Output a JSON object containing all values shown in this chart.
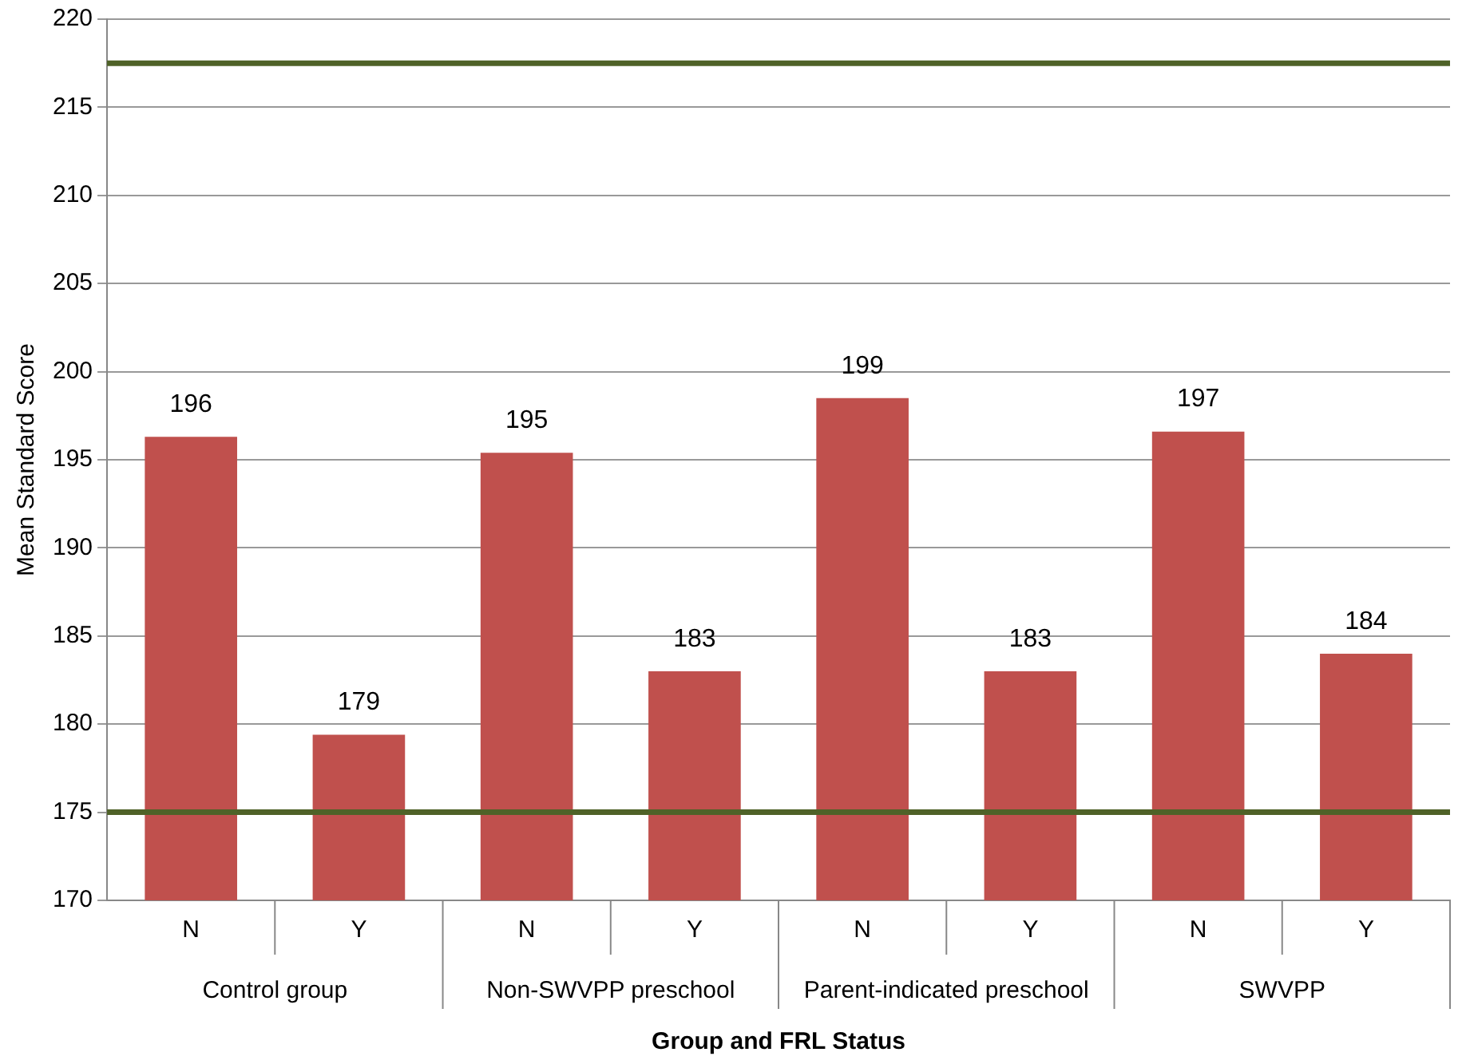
{
  "chart_data": {
    "type": "bar",
    "xlabel": "Group and FRL Status",
    "ylabel": "Mean Standard Score",
    "categories": [
      "N",
      "Y",
      "N",
      "Y",
      "N",
      "Y",
      "N",
      "Y"
    ],
    "values": [
      196.3,
      179.4,
      195.4,
      183,
      198.5,
      183,
      196.6,
      184
    ],
    "value_labels": [
      "196",
      "179",
      "195",
      "183",
      "199",
      "183",
      "197",
      "184"
    ],
    "color": "#c0504d",
    "annotations": [
      "Control group",
      "Non-SWVPP preschool",
      "Parent-indicated preschool",
      "SWVPP"
    ],
    "ref_lines": [
      {
        "axis": "y",
        "value": 217.5,
        "color": "#4f6228"
      },
      {
        "axis": "y",
        "value": 175,
        "color": "#4f6228"
      }
    ],
    "ylim": [
      170,
      220
    ],
    "yticks": [
      170,
      175,
      180,
      185,
      190,
      195,
      200,
      205,
      210,
      215,
      220
    ],
    "grid": "y",
    "legend": false
  }
}
